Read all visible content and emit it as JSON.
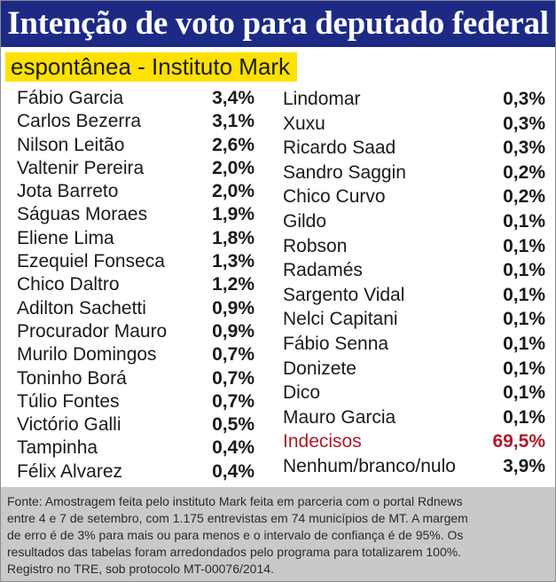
{
  "chart_data": {
    "type": "table",
    "title": "Intenção de voto para deputado federal",
    "subtitle": "espontânea  - Instituto Mark",
    "left_column": [
      {
        "name": "Fábio Garcia",
        "value": "3,4%"
      },
      {
        "name": "Carlos Bezerra",
        "value": "3,1%"
      },
      {
        "name": "Nilson Leitão",
        "value": "2,6%"
      },
      {
        "name": "Valtenir Pereira",
        "value": "2,0%"
      },
      {
        "name": "Jota Barreto",
        "value": "2,0%"
      },
      {
        "name": "Ságuas Moraes",
        "value": "1,9%"
      },
      {
        "name": "Eliene Lima",
        "value": "1,8%"
      },
      {
        "name": "Ezequiel Fonseca",
        "value": "1,3%"
      },
      {
        "name": "Chico Daltro",
        "value": "1,2%"
      },
      {
        "name": "Adilton Sachetti",
        "value": "0,9%"
      },
      {
        "name": "Procurador Mauro",
        "value": "0,9%"
      },
      {
        "name": "Murilo Domingos",
        "value": "0,7%"
      },
      {
        "name": "Toninho Borá",
        "value": "0,7%"
      },
      {
        "name": "Túlio Fontes",
        "value": "0,7%"
      },
      {
        "name": "Victório Galli",
        "value": "0,5%"
      },
      {
        "name": "Tampinha",
        "value": "0,4%"
      },
      {
        "name": "Félix Alvarez",
        "value": "0,4%"
      }
    ],
    "right_column": [
      {
        "name": "Lindomar",
        "value": "0,3%"
      },
      {
        "name": "Xuxu",
        "value": "0,3%"
      },
      {
        "name": "Ricardo Saad",
        "value": "0,3%"
      },
      {
        "name": "Sandro Saggin",
        "value": "0,2%"
      },
      {
        "name": "Chico Curvo",
        "value": "0,2%"
      },
      {
        "name": "Gildo",
        "value": "0,1%"
      },
      {
        "name": "Robson",
        "value": "0,1%"
      },
      {
        "name": "Radamés",
        "value": "0,1%"
      },
      {
        "name": "Sargento Vidal",
        "value": "0,1%"
      },
      {
        "name": "Nelci Capitani",
        "value": "0,1%"
      },
      {
        "name": "Fábio Senna",
        "value": "0,1%"
      },
      {
        "name": "Donizete",
        "value": "0,1%"
      },
      {
        "name": "Dico",
        "value": "0,1%"
      },
      {
        "name": "Mauro Garcia",
        "value": "0,1%"
      },
      {
        "name": "Indecisos",
        "value": "69,5%",
        "highlight": true
      },
      {
        "name": "Nenhum/branco/nulo",
        "value": "3,9%"
      }
    ],
    "footnote_lines": [
      "Fonte: Amostragem feita pelo instituto Mark feita em parceria com o portal Rdnews",
      "entre 4 e 7 de setembro, com 1.175 entrevistas em 74 municípios de MT. A margem",
      "de erro é de 3% para mais ou para menos e o intervalo de confiança é de 95%. Os",
      "resultados das tabelas foram arredondados pelo programa para totalizarem 100%.",
      "Registro no TRE, sob protocolo MT-00076/2014."
    ]
  },
  "colors": {
    "header_bg": "#1c2a86",
    "header_text": "#ffffff",
    "subtitle_bg": "#ffe100",
    "highlight_text": "#b0182a",
    "footer_bg": "#c9c9c9"
  }
}
